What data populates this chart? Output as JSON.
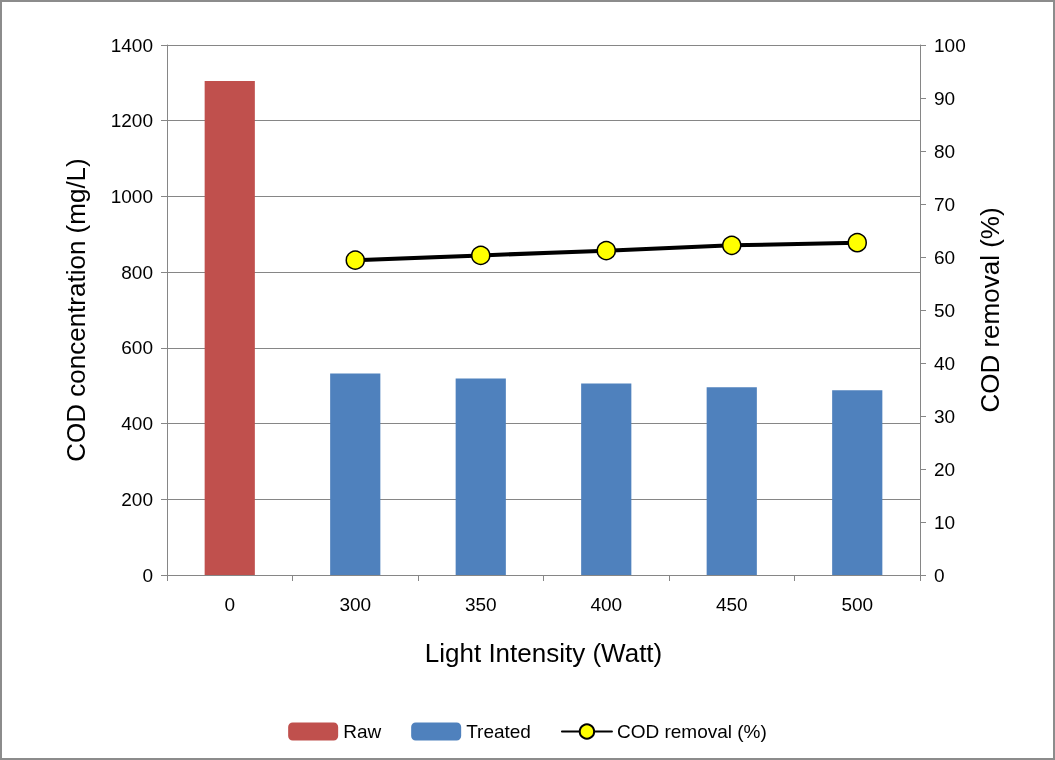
{
  "chart_data": {
    "type": "bar",
    "xlabel": "Light Intensity (Watt)",
    "ylabel": "COD concentration (mg/L)",
    "y2label": "COD removal (%)",
    "categories": [
      "0",
      "300",
      "350",
      "400",
      "450",
      "500"
    ],
    "series": [
      {
        "name": "Raw",
        "color": "#c0504d",
        "values": [
          1305,
          null,
          null,
          null,
          null,
          null
        ]
      },
      {
        "name": "Treated",
        "color": "#4f81bd",
        "values": [
          null,
          532,
          519,
          506,
          496,
          488
        ]
      },
      {
        "name": "COD removal (%)",
        "type": "line",
        "axis": "y2",
        "color": "#000000",
        "colors": [
          null,
          "#ffff00",
          "#ffff00",
          "#ffff00",
          "#ffff00",
          "#ffff00"
        ],
        "values": [
          null,
          59.4,
          60.3,
          61.2,
          62.2,
          62.7
        ]
      }
    ],
    "ylim": [
      0,
      1400
    ],
    "yticks": [
      0,
      200,
      400,
      600,
      800,
      1000,
      1200,
      1400
    ],
    "y2lim": [
      0,
      100
    ],
    "y2ticks": [
      0,
      10,
      20,
      30,
      40,
      50,
      60,
      70,
      80,
      90,
      100
    ],
    "grid": "y",
    "legend": "bottom",
    "marker": "circle",
    "line_style": "solid"
  }
}
